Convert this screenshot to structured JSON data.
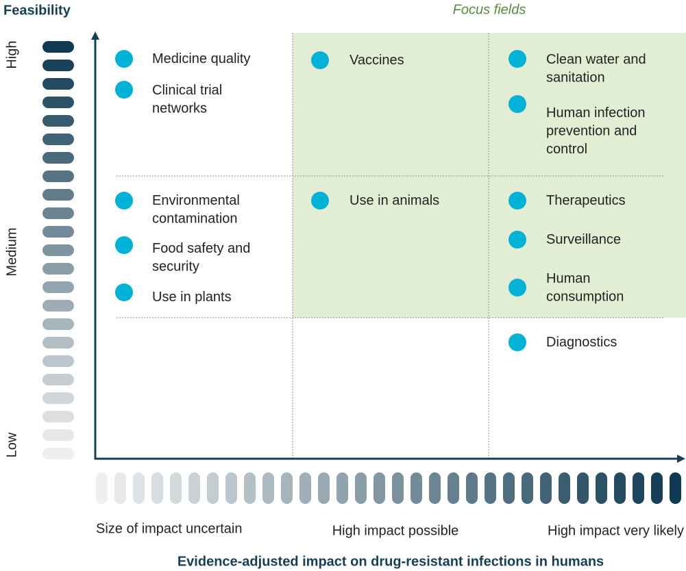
{
  "header": {
    "y_axis_title": "Feasibility",
    "focus_label": "Focus fields"
  },
  "y_levels": [
    "High",
    "Medium",
    "Low"
  ],
  "x_levels": [
    "Size of impact uncertain",
    "High impact possible",
    "High impact very likely"
  ],
  "x_axis_title": "Evidence-adjusted impact on drug-resistant infections in humans",
  "items": [
    {
      "lines": [
        "Medicine quality"
      ]
    },
    {
      "lines": [
        "Clinical trial",
        "networks"
      ]
    },
    {
      "lines": [
        "Vaccines"
      ]
    },
    {
      "lines": [
        "Clean water and",
        "sanitation"
      ]
    },
    {
      "lines": [
        "Human infection",
        "prevention and",
        "control"
      ]
    },
    {
      "lines": [
        "Environmental",
        "contamination"
      ]
    },
    {
      "lines": [
        "Food safety and",
        "security"
      ]
    },
    {
      "lines": [
        "Use in plants"
      ]
    },
    {
      "lines": [
        "Use in animals"
      ]
    },
    {
      "lines": [
        "Therapeutics"
      ]
    },
    {
      "lines": [
        "Surveillance"
      ]
    },
    {
      "lines": [
        "Human",
        "consumption"
      ]
    },
    {
      "lines": [
        "Diagnostics"
      ]
    }
  ]
}
